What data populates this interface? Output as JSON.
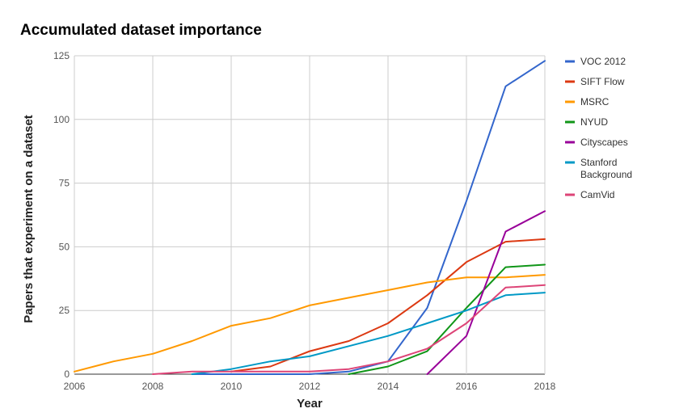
{
  "chart_data": {
    "type": "line",
    "title": "Accumulated dataset importance",
    "xlabel": "Year",
    "ylabel": "Papers that experiment on a dataset",
    "x": [
      2006,
      2007,
      2008,
      2009,
      2010,
      2011,
      2012,
      2013,
      2014,
      2015,
      2016,
      2017,
      2018
    ],
    "xlim": [
      2006,
      2018
    ],
    "ylim": [
      0,
      125
    ],
    "x_ticks": [
      "2006",
      "2008",
      "2010",
      "2012",
      "2014",
      "2016",
      "2018"
    ],
    "y_ticks": [
      "0",
      "25",
      "50",
      "75",
      "100",
      "125"
    ],
    "grid": true,
    "legend_position": "right",
    "series": [
      {
        "name": "VOC 2012",
        "color": "#3366cc",
        "values": [
          null,
          null,
          null,
          0,
          0,
          0,
          0,
          1,
          5,
          26,
          68,
          113,
          123
        ]
      },
      {
        "name": "SIFT Flow",
        "color": "#dc3912",
        "values": [
          null,
          null,
          null,
          null,
          1,
          3,
          9,
          13,
          20,
          31,
          44,
          52,
          53
        ]
      },
      {
        "name": "MSRC",
        "color": "#ff9900",
        "values": [
          1,
          5,
          8,
          13,
          19,
          22,
          27,
          30,
          33,
          36,
          38,
          38,
          39
        ]
      },
      {
        "name": "NYUD",
        "color": "#109618",
        "values": [
          null,
          null,
          null,
          null,
          null,
          null,
          null,
          0,
          3,
          9,
          26,
          42,
          43
        ]
      },
      {
        "name": "Cityscapes",
        "color": "#990099",
        "values": [
          null,
          null,
          null,
          null,
          null,
          null,
          null,
          null,
          null,
          0,
          15,
          56,
          64
        ]
      },
      {
        "name": "Stanford Background",
        "legend_lines": [
          "Stanford",
          "Background"
        ],
        "color": "#0099c6",
        "values": [
          null,
          null,
          null,
          0,
          2,
          5,
          7,
          11,
          15,
          20,
          25,
          31,
          32
        ]
      },
      {
        "name": "CamVid",
        "color": "#dd4477",
        "values": [
          null,
          null,
          0,
          1,
          1,
          1,
          1,
          2,
          5,
          10,
          20,
          34,
          35
        ]
      }
    ]
  }
}
